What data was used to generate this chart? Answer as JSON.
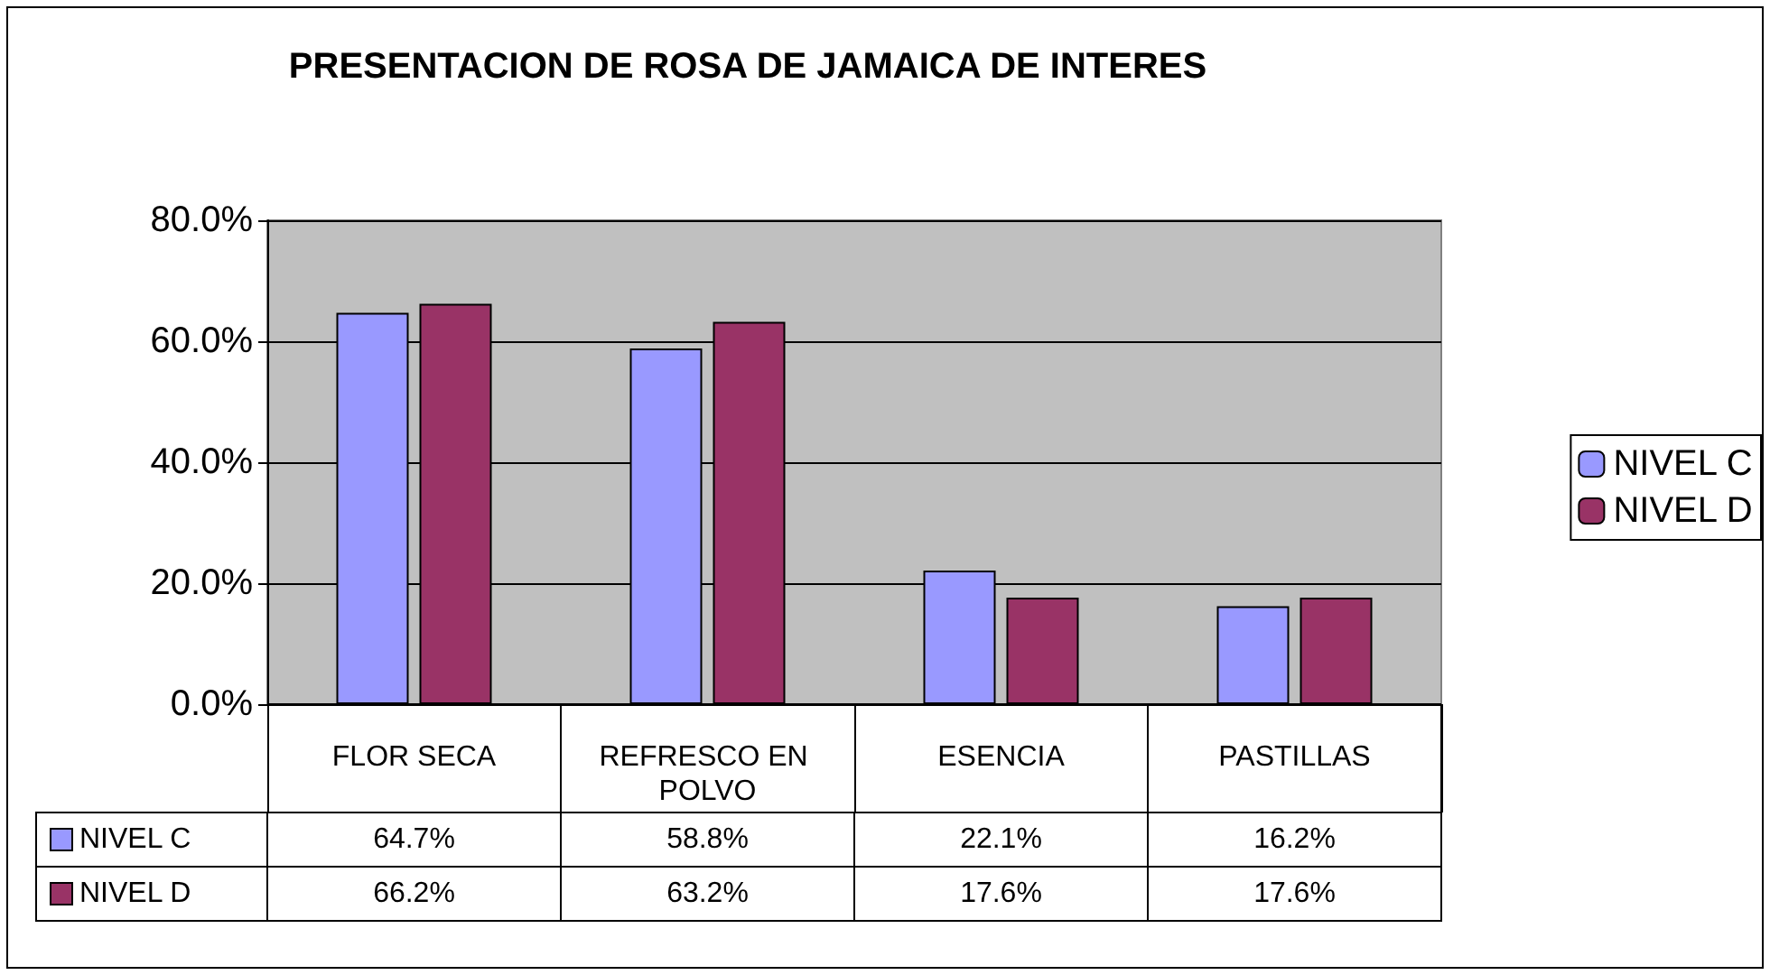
{
  "chart_data": {
    "type": "bar",
    "title": "PRESENTACION DE ROSA DE JAMAICA DE INTERES",
    "categories": [
      "FLOR SECA",
      "REFRESCO EN POLVO",
      "ESENCIA",
      "PASTILLAS"
    ],
    "series": [
      {
        "name": "NIVEL C",
        "color": "#9999ff",
        "values": [
          64.7,
          58.8,
          22.1,
          16.2
        ],
        "value_labels": [
          "64.7%",
          "58.8%",
          "22.1%",
          "16.2%"
        ]
      },
      {
        "name": "NIVEL D",
        "color": "#993366",
        "values": [
          66.2,
          63.2,
          17.6,
          17.6
        ],
        "value_labels": [
          "66.2%",
          "63.2%",
          "17.6%",
          "17.6%"
        ]
      }
    ],
    "ylim": [
      0,
      80
    ],
    "yticks": [
      {
        "value": 0,
        "label": "0.0%"
      },
      {
        "value": 20,
        "label": "20.0%"
      },
      {
        "value": 40,
        "label": "40.0%"
      },
      {
        "value": 60,
        "label": "60.0%"
      },
      {
        "value": 80,
        "label": "80.0%"
      }
    ],
    "grid": "y",
    "legend": "right"
  }
}
